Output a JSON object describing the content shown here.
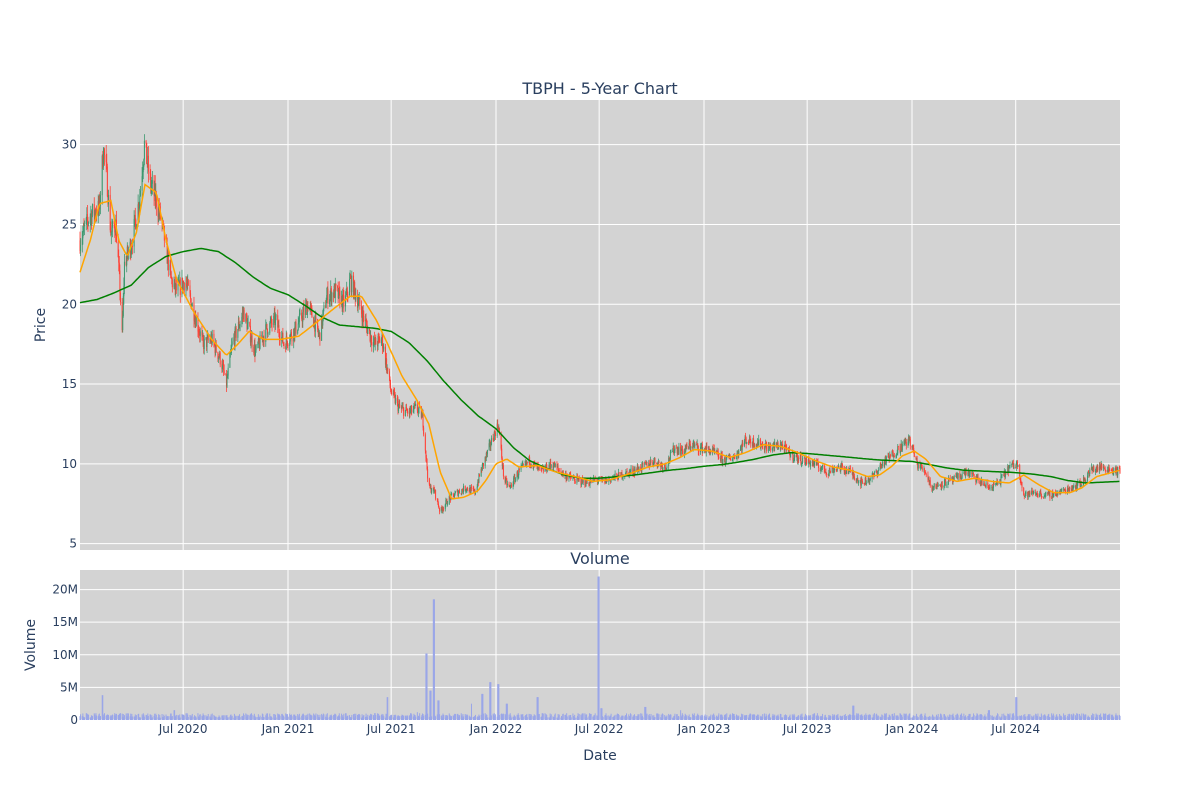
{
  "chart_data": {
    "type": "candlestick",
    "title": "TBPH - 5-Year Chart",
    "subplot_title": "Volume",
    "price_axis": {
      "label": "Price",
      "ylim": [
        4.6,
        32.8
      ],
      "ticks": [
        5,
        10,
        15,
        20,
        25,
        30
      ]
    },
    "volume_axis": {
      "label": "Volume",
      "ylim": [
        0,
        23000000
      ],
      "ticks": [
        {
          "value": 0,
          "label": "0"
        },
        {
          "value": 5000000,
          "label": "5M"
        },
        {
          "value": 10000000,
          "label": "10M"
        },
        {
          "value": 15000000,
          "label": "15M"
        },
        {
          "value": 20000000,
          "label": "20M"
        }
      ]
    },
    "x_axis": {
      "label": "Date",
      "range": [
        "2020-01-02",
        "2024-12-31"
      ],
      "ticks": [
        {
          "date": "2020-07-01",
          "label": "Jul 2020"
        },
        {
          "date": "2021-01-01",
          "label": "Jan 2021"
        },
        {
          "date": "2021-07-01",
          "label": "Jul 2021"
        },
        {
          "date": "2022-01-01",
          "label": "Jan 2022"
        },
        {
          "date": "2022-07-01",
          "label": "Jul 2022"
        },
        {
          "date": "2023-01-01",
          "label": "Jan 2023"
        },
        {
          "date": "2023-07-01",
          "label": "Jul 2023"
        },
        {
          "date": "2024-01-01",
          "label": "Jan 2024"
        },
        {
          "date": "2024-07-01",
          "label": "Jul 2024"
        }
      ]
    },
    "grid": true,
    "colors": {
      "increasing": "#3d9970",
      "decreasing": "#ff4136",
      "ma_short": "#ffa500",
      "ma_long": "#008000",
      "volume": "#9aa6e8",
      "plot_bg": "#d3d3d3",
      "grid": "#ffffff",
      "text": "#2a3f5f"
    },
    "price_anchors": [
      [
        "2020-01-02",
        24.0
      ],
      [
        "2020-01-20",
        25.6
      ],
      [
        "2020-02-05",
        26.0
      ],
      [
        "2020-02-12",
        29.8
      ],
      [
        "2020-02-18",
        28.0
      ],
      [
        "2020-02-25",
        24.5
      ],
      [
        "2020-03-05",
        25.0
      ],
      [
        "2020-03-12",
        21.0
      ],
      [
        "2020-03-16",
        18.0
      ],
      [
        "2020-03-20",
        22.5
      ],
      [
        "2020-04-01",
        23.8
      ],
      [
        "2020-04-15",
        26.5
      ],
      [
        "2020-04-24",
        30.0
      ],
      [
        "2020-05-05",
        27.5
      ],
      [
        "2020-05-15",
        26.5
      ],
      [
        "2020-05-25",
        25.0
      ],
      [
        "2020-06-10",
        21.5
      ],
      [
        "2020-06-20",
        20.8
      ],
      [
        "2020-07-05",
        21.5
      ],
      [
        "2020-07-20",
        19.5
      ],
      [
        "2020-08-05",
        17.5
      ],
      [
        "2020-08-20",
        17.8
      ],
      [
        "2020-09-05",
        16.5
      ],
      [
        "2020-09-15",
        15.0
      ],
      [
        "2020-09-25",
        17.5
      ],
      [
        "2020-10-15",
        19.5
      ],
      [
        "2020-11-05",
        17.0
      ],
      [
        "2020-11-25",
        18.5
      ],
      [
        "2020-12-10",
        19.0
      ],
      [
        "2020-12-25",
        17.5
      ],
      [
        "2021-01-15",
        18.5
      ],
      [
        "2021-02-05",
        20.0
      ],
      [
        "2021-02-25",
        18.0
      ],
      [
        "2021-03-10",
        20.5
      ],
      [
        "2021-03-25",
        20.8
      ],
      [
        "2021-04-10",
        20.0
      ],
      [
        "2021-04-20",
        21.5
      ],
      [
        "2021-05-01",
        20.5
      ],
      [
        "2021-05-20",
        18.5
      ],
      [
        "2021-06-01",
        17.5
      ],
      [
        "2021-06-15",
        17.8
      ],
      [
        "2021-07-01",
        14.5
      ],
      [
        "2021-07-15",
        13.5
      ],
      [
        "2021-08-01",
        13.2
      ],
      [
        "2021-08-15",
        13.5
      ],
      [
        "2021-08-25",
        13.0
      ],
      [
        "2021-09-05",
        8.5
      ],
      [
        "2021-09-15",
        8.3
      ],
      [
        "2021-09-25",
        7.0
      ],
      [
        "2021-10-10",
        7.8
      ],
      [
        "2021-10-25",
        8.2
      ],
      [
        "2021-11-10",
        8.5
      ],
      [
        "2021-11-25",
        8.2
      ],
      [
        "2021-12-05",
        9.5
      ],
      [
        "2021-12-15",
        10.5
      ],
      [
        "2021-12-25",
        11.5
      ],
      [
        "2022-01-05",
        12.5
      ],
      [
        "2022-01-15",
        9.0
      ],
      [
        "2022-01-25",
        8.5
      ],
      [
        "2022-02-10",
        9.5
      ],
      [
        "2022-03-01",
        10.2
      ],
      [
        "2022-03-20",
        9.5
      ],
      [
        "2022-04-10",
        10.0
      ],
      [
        "2022-05-01",
        9.3
      ],
      [
        "2022-05-20",
        9.0
      ],
      [
        "2022-06-10",
        8.8
      ],
      [
        "2022-06-25",
        9.0
      ],
      [
        "2022-07-10",
        8.9
      ],
      [
        "2022-08-01",
        9.2
      ],
      [
        "2022-08-25",
        9.5
      ],
      [
        "2022-09-15",
        9.8
      ],
      [
        "2022-10-05",
        10.2
      ],
      [
        "2022-10-25",
        9.8
      ],
      [
        "2022-11-10",
        11.0
      ],
      [
        "2022-11-25",
        10.8
      ],
      [
        "2022-12-10",
        11.2
      ],
      [
        "2022-12-25",
        11.0
      ],
      [
        "2023-01-15",
        10.8
      ],
      [
        "2023-02-05",
        10.2
      ],
      [
        "2023-02-25",
        10.5
      ],
      [
        "2023-03-15",
        11.5
      ],
      [
        "2023-04-05",
        11.3
      ],
      [
        "2023-04-25",
        11.0
      ],
      [
        "2023-05-15",
        11.2
      ],
      [
        "2023-06-05",
        10.5
      ],
      [
        "2023-06-25",
        10.2
      ],
      [
        "2023-07-15",
        10.0
      ],
      [
        "2023-08-05",
        9.5
      ],
      [
        "2023-08-25",
        9.8
      ],
      [
        "2023-09-15",
        9.5
      ],
      [
        "2023-10-05",
        8.8
      ],
      [
        "2023-10-25",
        9.2
      ],
      [
        "2023-11-10",
        10.0
      ],
      [
        "2023-11-25",
        10.5
      ],
      [
        "2023-12-10",
        11.0
      ],
      [
        "2023-12-28",
        11.5
      ],
      [
        "2024-01-10",
        10.0
      ],
      [
        "2024-01-25",
        9.5
      ],
      [
        "2024-02-05",
        8.5
      ],
      [
        "2024-02-25",
        8.8
      ],
      [
        "2024-03-15",
        9.0
      ],
      [
        "2024-04-05",
        9.5
      ],
      [
        "2024-04-25",
        9.0
      ],
      [
        "2024-05-15",
        8.5
      ],
      [
        "2024-06-01",
        8.8
      ],
      [
        "2024-06-20",
        9.8
      ],
      [
        "2024-07-05",
        10.0
      ],
      [
        "2024-07-15",
        8.0
      ],
      [
        "2024-08-01",
        8.2
      ],
      [
        "2024-08-25",
        8.0
      ],
      [
        "2024-09-15",
        8.2
      ],
      [
        "2024-10-05",
        8.5
      ],
      [
        "2024-10-25",
        8.8
      ],
      [
        "2024-11-10",
        9.6
      ],
      [
        "2024-11-25",
        9.8
      ],
      [
        "2024-12-10",
        9.7
      ],
      [
        "2024-12-31",
        9.5
      ]
    ],
    "ma_short": [
      [
        "2020-01-02",
        22.0
      ],
      [
        "2020-01-20",
        24.0
      ],
      [
        "2020-02-05",
        26.3
      ],
      [
        "2020-02-25",
        26.5
      ],
      [
        "2020-03-10",
        24.0
      ],
      [
        "2020-03-25",
        23.0
      ],
      [
        "2020-04-10",
        24.5
      ],
      [
        "2020-04-25",
        27.5
      ],
      [
        "2020-05-15",
        27.0
      ],
      [
        "2020-06-01",
        24.0
      ],
      [
        "2020-06-20",
        21.5
      ],
      [
        "2020-07-20",
        19.5
      ],
      [
        "2020-08-20",
        17.8
      ],
      [
        "2020-09-15",
        16.8
      ],
      [
        "2020-10-05",
        17.5
      ],
      [
        "2020-10-25",
        18.3
      ],
      [
        "2020-11-20",
        17.8
      ],
      [
        "2020-12-20",
        17.8
      ],
      [
        "2021-01-20",
        18.0
      ],
      [
        "2021-02-25",
        19.0
      ],
      [
        "2021-03-25",
        19.8
      ],
      [
        "2021-04-20",
        20.5
      ],
      [
        "2021-05-10",
        20.5
      ],
      [
        "2021-06-05",
        19.0
      ],
      [
        "2021-06-25",
        17.5
      ],
      [
        "2021-07-20",
        15.5
      ],
      [
        "2021-08-15",
        14.0
      ],
      [
        "2021-09-05",
        12.5
      ],
      [
        "2021-09-25",
        9.5
      ],
      [
        "2021-10-15",
        7.8
      ],
      [
        "2021-11-05",
        7.9
      ],
      [
        "2021-11-30",
        8.3
      ],
      [
        "2021-12-15",
        9.0
      ],
      [
        "2022-01-01",
        10.0
      ],
      [
        "2022-01-20",
        10.3
      ],
      [
        "2022-02-10",
        9.8
      ],
      [
        "2022-03-15",
        9.9
      ],
      [
        "2022-04-15",
        9.5
      ],
      [
        "2022-05-20",
        9.2
      ],
      [
        "2022-06-20",
        8.9
      ],
      [
        "2022-07-20",
        9.0
      ],
      [
        "2022-08-25",
        9.4
      ],
      [
        "2022-09-25",
        9.8
      ],
      [
        "2022-10-25",
        10.0
      ],
      [
        "2022-11-20",
        10.4
      ],
      [
        "2022-12-15",
        10.9
      ],
      [
        "2023-01-15",
        10.8
      ],
      [
        "2023-02-15",
        10.4
      ],
      [
        "2023-03-15",
        10.7
      ],
      [
        "2023-04-15",
        11.2
      ],
      [
        "2023-05-15",
        11.1
      ],
      [
        "2023-06-15",
        10.7
      ],
      [
        "2023-07-15",
        10.2
      ],
      [
        "2023-08-15",
        9.8
      ],
      [
        "2023-09-15",
        9.6
      ],
      [
        "2023-10-15",
        9.2
      ],
      [
        "2023-11-05",
        9.3
      ],
      [
        "2023-11-25",
        9.8
      ],
      [
        "2023-12-15",
        10.5
      ],
      [
        "2024-01-05",
        10.8
      ],
      [
        "2024-01-25",
        10.3
      ],
      [
        "2024-02-20",
        9.2
      ],
      [
        "2024-03-20",
        8.9
      ],
      [
        "2024-04-20",
        9.1
      ],
      [
        "2024-05-20",
        8.9
      ],
      [
        "2024-06-20",
        8.8
      ],
      [
        "2024-07-15",
        9.3
      ],
      [
        "2024-08-10",
        8.7
      ],
      [
        "2024-09-05",
        8.2
      ],
      [
        "2024-10-05",
        8.2
      ],
      [
        "2024-10-25",
        8.5
      ],
      [
        "2024-11-20",
        9.2
      ],
      [
        "2024-12-31",
        9.6
      ]
    ],
    "ma_long": [
      [
        "2020-01-02",
        20.1
      ],
      [
        "2020-02-01",
        20.3
      ],
      [
        "2020-03-01",
        20.7
      ],
      [
        "2020-04-01",
        21.2
      ],
      [
        "2020-05-01",
        22.3
      ],
      [
        "2020-06-01",
        23.0
      ],
      [
        "2020-07-01",
        23.3
      ],
      [
        "2020-08-01",
        23.5
      ],
      [
        "2020-09-01",
        23.3
      ],
      [
        "2020-10-01",
        22.6
      ],
      [
        "2020-11-01",
        21.7
      ],
      [
        "2020-12-01",
        21.0
      ],
      [
        "2021-01-01",
        20.6
      ],
      [
        "2021-02-01",
        19.9
      ],
      [
        "2021-03-01",
        19.2
      ],
      [
        "2021-04-01",
        18.7
      ],
      [
        "2021-05-01",
        18.6
      ],
      [
        "2021-06-01",
        18.5
      ],
      [
        "2021-07-01",
        18.3
      ],
      [
        "2021-08-01",
        17.6
      ],
      [
        "2021-09-01",
        16.5
      ],
      [
        "2021-10-01",
        15.2
      ],
      [
        "2021-11-01",
        14.0
      ],
      [
        "2021-12-01",
        13.0
      ],
      [
        "2022-01-01",
        12.2
      ],
      [
        "2022-02-01",
        11.0
      ],
      [
        "2022-03-01",
        10.2
      ],
      [
        "2022-04-01",
        9.7
      ],
      [
        "2022-05-01",
        9.3
      ],
      [
        "2022-06-01",
        9.1
      ],
      [
        "2022-07-01",
        9.1
      ],
      [
        "2022-08-01",
        9.2
      ],
      [
        "2022-09-01",
        9.3
      ],
      [
        "2022-10-01",
        9.45
      ],
      [
        "2022-11-01",
        9.6
      ],
      [
        "2022-12-01",
        9.7
      ],
      [
        "2023-01-01",
        9.85
      ],
      [
        "2023-02-01",
        9.95
      ],
      [
        "2023-03-01",
        10.1
      ],
      [
        "2023-04-01",
        10.3
      ],
      [
        "2023-05-01",
        10.55
      ],
      [
        "2023-06-01",
        10.7
      ],
      [
        "2023-07-01",
        10.65
      ],
      [
        "2023-08-01",
        10.55
      ],
      [
        "2023-09-01",
        10.45
      ],
      [
        "2023-10-01",
        10.35
      ],
      [
        "2023-11-01",
        10.25
      ],
      [
        "2023-12-01",
        10.2
      ],
      [
        "2024-01-01",
        10.15
      ],
      [
        "2024-02-01",
        9.95
      ],
      [
        "2024-03-01",
        9.75
      ],
      [
        "2024-04-01",
        9.6
      ],
      [
        "2024-05-01",
        9.55
      ],
      [
        "2024-06-01",
        9.5
      ],
      [
        "2024-07-01",
        9.45
      ],
      [
        "2024-08-01",
        9.35
      ],
      [
        "2024-09-01",
        9.2
      ],
      [
        "2024-10-01",
        8.95
      ],
      [
        "2024-11-01",
        8.8
      ],
      [
        "2024-12-01",
        8.85
      ],
      [
        "2024-12-31",
        8.9
      ]
    ],
    "volume_spikes": [
      [
        "2020-02-10",
        3800000
      ],
      [
        "2020-06-15",
        1500000
      ],
      [
        "2021-06-25",
        3500000
      ],
      [
        "2021-08-15",
        1200000
      ],
      [
        "2021-09-01",
        10200000
      ],
      [
        "2021-09-08",
        4500000
      ],
      [
        "2021-09-14",
        18500000
      ],
      [
        "2021-09-22",
        3000000
      ],
      [
        "2021-11-20",
        2500000
      ],
      [
        "2021-12-08",
        4000000
      ],
      [
        "2021-12-22",
        5800000
      ],
      [
        "2022-01-05",
        5500000
      ],
      [
        "2022-01-20",
        2500000
      ],
      [
        "2022-03-15",
        3500000
      ],
      [
        "2022-06-30",
        22000000
      ],
      [
        "2022-07-05",
        1800000
      ],
      [
        "2022-09-20",
        2000000
      ],
      [
        "2022-11-20",
        1500000
      ],
      [
        "2023-09-20",
        2200000
      ],
      [
        "2024-05-15",
        1500000
      ],
      [
        "2024-07-02",
        3500000
      ]
    ]
  }
}
